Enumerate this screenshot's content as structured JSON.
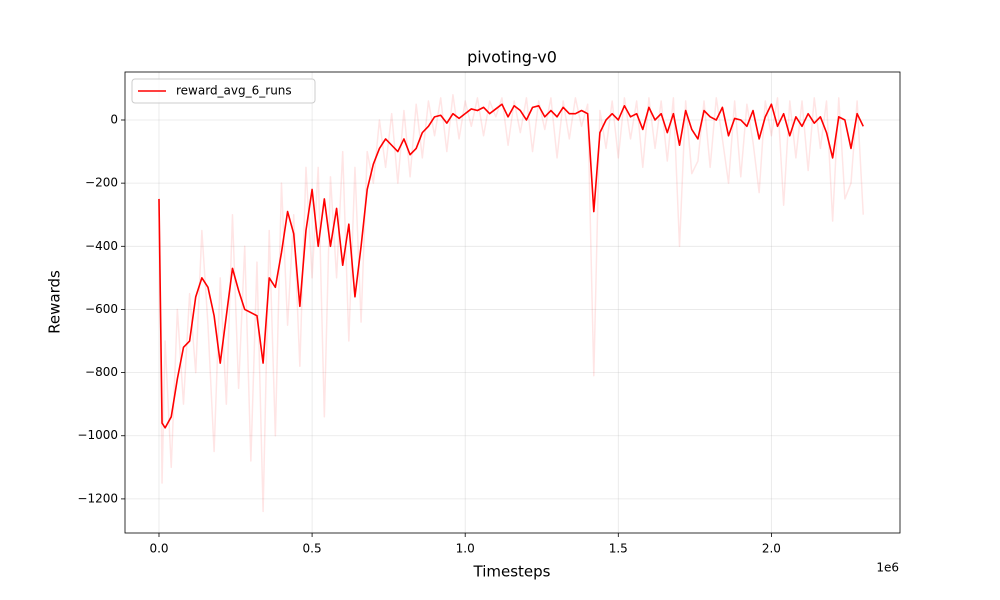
{
  "chart_data": {
    "type": "line",
    "title": "pivoting-v0",
    "xlabel": "Timesteps",
    "ylabel": "Rewards",
    "x_offset_label": "1e6",
    "x": [
      0,
      10000,
      20000,
      40000,
      60000,
      80000,
      100000,
      120000,
      140000,
      160000,
      180000,
      200000,
      220000,
      240000,
      260000,
      280000,
      300000,
      320000,
      340000,
      360000,
      380000,
      400000,
      420000,
      440000,
      460000,
      480000,
      500000,
      520000,
      540000,
      560000,
      580000,
      600000,
      620000,
      640000,
      660000,
      680000,
      700000,
      720000,
      740000,
      760000,
      780000,
      800000,
      820000,
      840000,
      860000,
      880000,
      900000,
      920000,
      940000,
      960000,
      980000,
      1000000,
      1020000,
      1040000,
      1060000,
      1080000,
      1100000,
      1120000,
      1140000,
      1160000,
      1180000,
      1200000,
      1220000,
      1240000,
      1260000,
      1280000,
      1300000,
      1320000,
      1340000,
      1360000,
      1380000,
      1400000,
      1420000,
      1440000,
      1460000,
      1480000,
      1500000,
      1520000,
      1540000,
      1560000,
      1580000,
      1600000,
      1620000,
      1640000,
      1660000,
      1680000,
      1700000,
      1720000,
      1740000,
      1760000,
      1780000,
      1800000,
      1820000,
      1840000,
      1860000,
      1880000,
      1900000,
      1920000,
      1940000,
      1960000,
      1980000,
      2000000,
      2020000,
      2040000,
      2060000,
      2080000,
      2100000,
      2120000,
      2140000,
      2160000,
      2180000,
      2200000,
      2220000,
      2240000,
      2260000,
      2280000,
      2300000
    ],
    "series": [
      {
        "color": "#ff0000",
        "alpha": 0.1,
        "values": [
          -250,
          -1150,
          -700,
          -1100,
          -600,
          -900,
          -550,
          -800,
          -350,
          -650,
          -1050,
          -500,
          -900,
          -300,
          -850,
          -400,
          -1080,
          -450,
          -1240,
          -350,
          -1000,
          -200,
          -650,
          -300,
          -780,
          -150,
          -500,
          -150,
          -940,
          -180,
          -500,
          -100,
          -700,
          -150,
          -640,
          -100,
          -200,
          0,
          -150,
          20,
          -200,
          30,
          -180,
          50,
          -120,
          60,
          -50,
          70,
          -100,
          80,
          -60,
          60,
          -20,
          70,
          -50,
          60,
          10,
          70,
          -80,
          60,
          -40,
          70,
          -100,
          60,
          -30,
          70,
          -120,
          60,
          -60,
          70,
          -20,
          50,
          -810,
          30,
          -90,
          60,
          -120,
          70,
          -60,
          60,
          -150,
          70,
          -90,
          60,
          -130,
          70,
          -400,
          60,
          -170,
          -130,
          60,
          -150,
          70,
          -60,
          -200,
          60,
          -180,
          50,
          -70,
          -230,
          60,
          -50,
          70,
          -270,
          60,
          -120,
          60,
          -160,
          70,
          -90,
          60,
          -320,
          70,
          -250,
          -200,
          60,
          -300
        ]
      },
      {
        "name": "reward_avg_6_runs",
        "color": "#ff0000",
        "alpha": 1,
        "values": [
          -250,
          -960,
          -975,
          -940,
          -820,
          -720,
          -700,
          -560,
          -500,
          -530,
          -620,
          -770,
          -620,
          -470,
          -540,
          -600,
          -610,
          -620,
          -770,
          -500,
          -530,
          -420,
          -290,
          -360,
          -590,
          -350,
          -220,
          -400,
          -250,
          -400,
          -280,
          -460,
          -330,
          -560,
          -400,
          -220,
          -140,
          -90,
          -60,
          -80,
          -100,
          -60,
          -110,
          -90,
          -40,
          -20,
          10,
          15,
          -10,
          20,
          5,
          20,
          35,
          30,
          40,
          20,
          35,
          50,
          10,
          45,
          30,
          0,
          40,
          45,
          10,
          30,
          10,
          40,
          20,
          20,
          30,
          20,
          -290,
          -40,
          0,
          20,
          0,
          45,
          10,
          20,
          -30,
          40,
          0,
          20,
          -40,
          20,
          -80,
          30,
          -30,
          -60,
          30,
          10,
          0,
          40,
          -50,
          5,
          0,
          -20,
          30,
          -60,
          10,
          50,
          -20,
          20,
          -50,
          10,
          -20,
          20,
          -10,
          10,
          -40,
          -120,
          10,
          0,
          -90,
          20,
          -20
        ]
      }
    ],
    "xlim": [
      -111000,
      2420000
    ],
    "xticks": [
      {
        "value": 0,
        "label": "0.0"
      },
      {
        "value": 500000,
        "label": "0.5"
      },
      {
        "value": 1000000,
        "label": "1.0"
      },
      {
        "value": 1500000,
        "label": "1.5"
      },
      {
        "value": 2000000,
        "label": "2.0"
      }
    ],
    "ylim": [
      -1308,
      152
    ],
    "yticks": [
      {
        "value": -1200,
        "label": "−1200"
      },
      {
        "value": -1000,
        "label": "−1000"
      },
      {
        "value": -800,
        "label": "−800"
      },
      {
        "value": -600,
        "label": "−600"
      },
      {
        "value": -400,
        "label": "−400"
      },
      {
        "value": -200,
        "label": "−200"
      },
      0
    ],
    "grid": true,
    "legend": "upper left"
  }
}
